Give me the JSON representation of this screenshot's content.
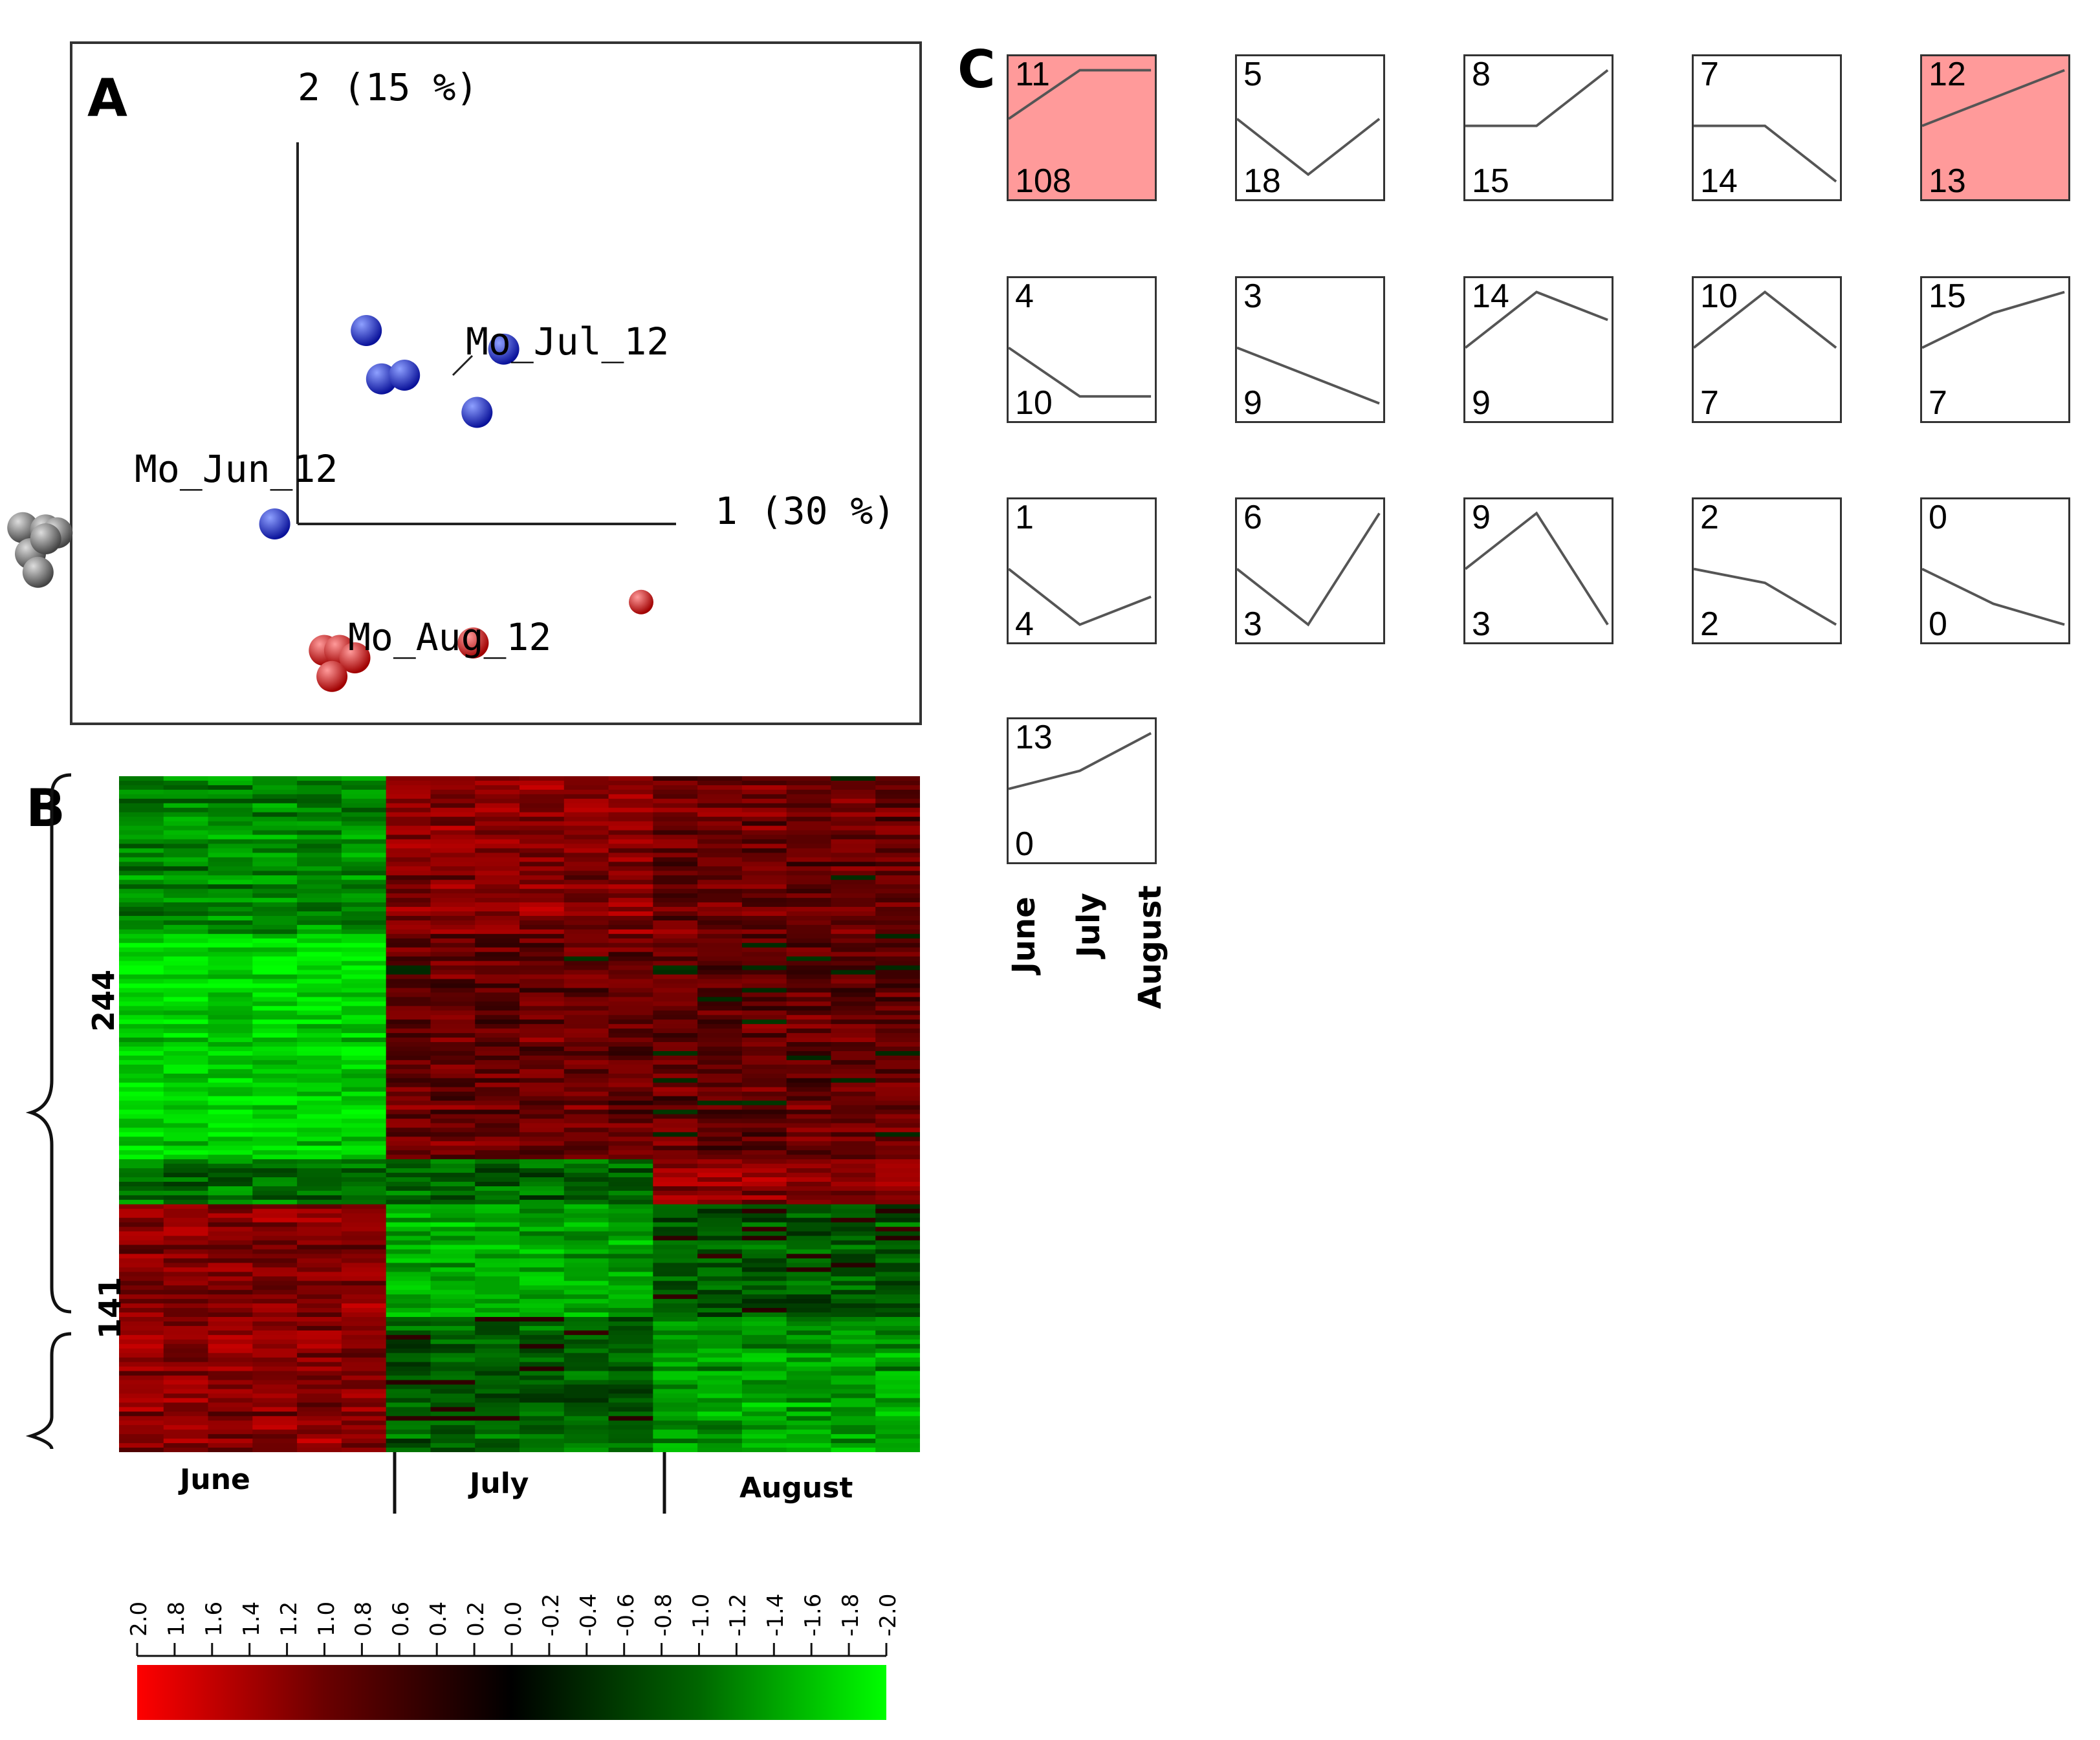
{
  "panel_labels": {
    "a": "A",
    "b": "B",
    "c": "C"
  },
  "chart_data": [
    {
      "type": "scatter",
      "title": "",
      "xlabel": "1 (30 %)",
      "ylabel": "2 (15 %)",
      "sample_labels": [
        "Mo_Jun_12",
        "Mo_Jul_12",
        "Mo_Aug_12"
      ],
      "series": [
        {
          "name": "June",
          "color": "#555555",
          "points": [
            [
              -3.6,
              -0.05
            ],
            [
              -3.3,
              -0.08
            ],
            [
              -3.15,
              -0.12
            ],
            [
              -3.5,
              -0.4
            ],
            [
              -3.3,
              -0.2
            ],
            [
              -3.4,
              -0.65
            ]
          ]
        },
        {
          "name": "July",
          "color": "#1a24c8",
          "points": [
            [
              -0.3,
              0.0
            ],
            [
              0.9,
              2.6
            ],
            [
              1.1,
              1.95
            ],
            [
              1.4,
              2.0
            ],
            [
              2.35,
              1.5
            ],
            [
              2.7,
              2.35
            ]
          ]
        },
        {
          "name": "August",
          "color": "#e00000",
          "points": [
            [
              0.35,
              -1.7
            ],
            [
              0.55,
              -1.7
            ],
            [
              0.75,
              -1.8
            ],
            [
              0.45,
              -2.05
            ],
            [
              2.3,
              -1.6
            ],
            [
              4.5,
              -1.05
            ]
          ]
        }
      ]
    },
    {
      "type": "heatmap",
      "groups": [
        "June",
        "July",
        "August"
      ],
      "clusters": [
        {
          "label": "244",
          "count": 244
        },
        {
          "label": "141",
          "count": 141
        }
      ],
      "colorbar": {
        "ticks": [
          "2.0",
          "1.8",
          "1.6",
          "1.4",
          "1.2",
          "1.0",
          "0.8",
          "0.6",
          "0.4",
          "0.2",
          "0.0",
          "-0.2",
          "-0.4",
          "-0.6",
          "-0.8",
          "-1.0",
          "-1.2",
          "-1.4",
          "-1.6",
          "-1.8",
          "-2.0"
        ],
        "min": -2.0,
        "max": 2.0,
        "colors": {
          "high": "#ff0000",
          "mid": "#000000",
          "low": "#00ff00"
        }
      }
    },
    {
      "type": "line",
      "categories": [
        "June",
        "July",
        "August"
      ],
      "highlight_color": "#ff9a9a",
      "profiles": [
        {
          "id": "11",
          "count": "108",
          "values": [
            0.55,
            0.9,
            0.9
          ],
          "highlight": true
        },
        {
          "id": "5",
          "count": "18",
          "values": [
            0.55,
            0.15,
            0.55
          ],
          "highlight": false
        },
        {
          "id": "8",
          "count": "15",
          "values": [
            0.5,
            0.5,
            0.9
          ],
          "highlight": false
        },
        {
          "id": "7",
          "count": "14",
          "values": [
            0.5,
            0.5,
            0.1
          ],
          "highlight": false
        },
        {
          "id": "12",
          "count": "13",
          "values": [
            0.5,
            0.7,
            0.9
          ],
          "highlight": true
        },
        {
          "id": "4",
          "count": "10",
          "values": [
            0.5,
            0.15,
            0.15
          ],
          "highlight": false
        },
        {
          "id": "3",
          "count": "9",
          "values": [
            0.5,
            0.3,
            0.1
          ],
          "highlight": false
        },
        {
          "id": "14",
          "count": "9",
          "values": [
            0.5,
            0.9,
            0.7
          ],
          "highlight": false
        },
        {
          "id": "10",
          "count": "7",
          "values": [
            0.5,
            0.9,
            0.5
          ],
          "highlight": false
        },
        {
          "id": "15",
          "count": "7",
          "values": [
            0.5,
            0.75,
            0.9
          ],
          "highlight": false
        },
        {
          "id": "1",
          "count": "4",
          "values": [
            0.5,
            0.1,
            0.3
          ],
          "highlight": false
        },
        {
          "id": "6",
          "count": "3",
          "values": [
            0.5,
            0.1,
            0.9
          ],
          "highlight": false
        },
        {
          "id": "9",
          "count": "3",
          "values": [
            0.5,
            0.9,
            0.1
          ],
          "highlight": false
        },
        {
          "id": "2",
          "count": "2",
          "values": [
            0.5,
            0.4,
            0.1
          ],
          "highlight": false
        },
        {
          "id": "0",
          "count": "0",
          "values": [
            0.5,
            0.25,
            0.1
          ],
          "highlight": false
        },
        {
          "id": "13",
          "count": "0",
          "values": [
            0.5,
            0.63,
            0.9
          ],
          "highlight": false
        }
      ]
    }
  ]
}
